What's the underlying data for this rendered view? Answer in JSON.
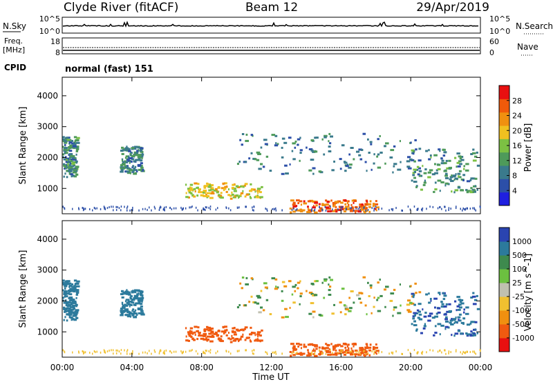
{
  "header": {
    "station": "Clyde River (fitACF)",
    "beam": "Beam 12",
    "date": "29/Apr/2019"
  },
  "top_panels": {
    "nsky_label": "N.Sky",
    "nsky_ticks": [
      "10^5",
      "10^0"
    ],
    "nsearch_label": "N.Search",
    "nsearch_ticks": [
      "10^5",
      "10^0"
    ],
    "freq_label_line1": "Freq.",
    "freq_label_line2": "[MHz]",
    "freq_ticks": [
      "18",
      "8"
    ],
    "nave_label": "Nave",
    "nave_ticks": [
      "60",
      "0"
    ],
    "cpid_label": "CPID",
    "cpid_value": "normal (fast) 151"
  },
  "colors": {
    "power": [
      "#1f1fe0",
      "#2c4fa8",
      "#3a7a8c",
      "#4e9a5a",
      "#7cc043",
      "#f0c020",
      "#f09010",
      "#f05a0a",
      "#e81010"
    ],
    "velocity": [
      "#2a44b0",
      "#2c7a9c",
      "#3e8a4e",
      "#6cc040",
      "#c0c0b0",
      "#f0c030",
      "#f09010",
      "#f05a10",
      "#e81010"
    ]
  },
  "chart_data": [
    {
      "type": "heatmap",
      "panel": "power",
      "xlabel": "",
      "ylabel": "Slant Range [km]",
      "yticks": [
        "1000",
        "2000",
        "3000",
        "4000"
      ],
      "ylim": [
        180,
        4600
      ],
      "xlim_hours": [
        0,
        24
      ],
      "xticks": [
        "00:00",
        "04:00",
        "08:00",
        "12:00",
        "16:00",
        "20:00",
        "00:00"
      ],
      "colorbar": {
        "label": "Power [dB]",
        "ticks": [
          "4",
          "8",
          "12",
          "16",
          "20",
          "24",
          "28"
        ],
        "range": [
          0,
          30
        ]
      },
      "features": [
        {
          "name": "scatter-early",
          "t": [
            0.0,
            0.8
          ],
          "range_km": [
            1400,
            2700
          ],
          "value": 10
        },
        {
          "name": "scatter-04h",
          "t": [
            3.3,
            4.6
          ],
          "range_km": [
            1500,
            2400
          ],
          "value": 9
        },
        {
          "name": "band-lower-morning",
          "t": [
            7.0,
            11.5
          ],
          "range_km": [
            700,
            1200
          ],
          "value": 18
        },
        {
          "name": "band-upper",
          "t": [
            10.0,
            20.5
          ],
          "range_km": [
            1500,
            2800
          ],
          "value": 8
        },
        {
          "name": "band-afternoon-core",
          "t": [
            13.0,
            18.0
          ],
          "range_km": [
            250,
            650
          ],
          "value": 24
        },
        {
          "name": "band-late",
          "t": [
            20.0,
            23.8
          ],
          "range_km": [
            900,
            2300
          ],
          "value": 10
        }
      ]
    },
    {
      "type": "heatmap",
      "panel": "velocity",
      "xlabel": "Time UT",
      "ylabel": "Slant Range [km]",
      "yticks": [
        "1000",
        "2000",
        "3000",
        "4000"
      ],
      "ylim": [
        180,
        4600
      ],
      "xlim_hours": [
        0,
        24
      ],
      "xticks": [
        "00:00",
        "04:00",
        "08:00",
        "12:00",
        "16:00",
        "20:00",
        "00:00"
      ],
      "colorbar": {
        "label": "Velocity [m s^-1]",
        "ticks": [
          "1000",
          "500",
          "100",
          "25",
          "-25",
          "-100",
          "-500",
          "-1000"
        ],
        "range": [
          -1000,
          1000
        ]
      },
      "features": [
        {
          "name": "scatter-early",
          "t": [
            0.0,
            0.8
          ],
          "range_km": [
            1400,
            2700
          ],
          "value": 100
        },
        {
          "name": "scatter-04h",
          "t": [
            3.3,
            4.6
          ],
          "range_km": [
            1500,
            2400
          ],
          "value": 100
        },
        {
          "name": "band-lower-morning",
          "t": [
            7.0,
            11.5
          ],
          "range_km": [
            700,
            1200
          ],
          "value": -150
        },
        {
          "name": "band-upper",
          "t": [
            10.0,
            20.5
          ],
          "range_km": [
            1500,
            2800
          ],
          "value": 0
        },
        {
          "name": "band-afternoon-core",
          "t": [
            13.0,
            18.0
          ],
          "range_km": [
            250,
            650
          ],
          "value": -150
        },
        {
          "name": "band-late",
          "t": [
            20.0,
            23.8
          ],
          "range_km": [
            900,
            2300
          ],
          "value": 200
        }
      ]
    }
  ]
}
